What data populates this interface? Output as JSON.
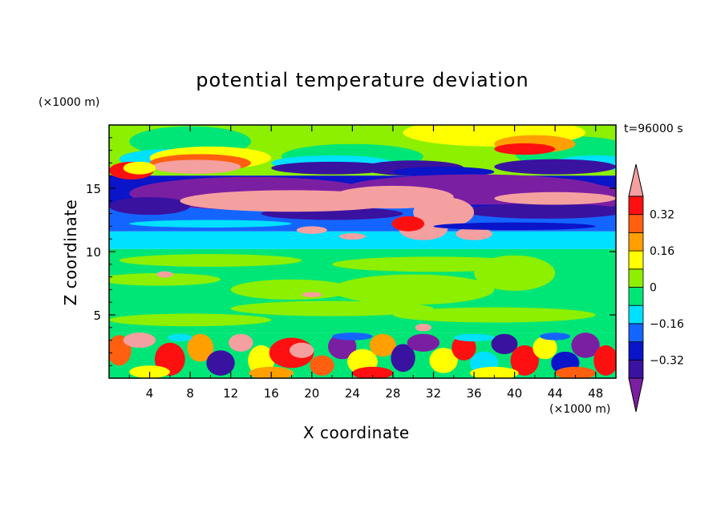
{
  "chart_data": {
    "type": "heatmap",
    "title": "potential temperature deviation",
    "xlabel": "X coordinate",
    "ylabel": "Z coordinate",
    "x_unit": "(×1000 m)",
    "y_unit": "(×1000 m)",
    "time_label": "t=96000 s",
    "xlim": [
      0,
      50
    ],
    "ylim": [
      0,
      20
    ],
    "x_ticks": [
      4,
      8,
      12,
      16,
      20,
      24,
      28,
      32,
      36,
      40,
      44,
      48
    ],
    "y_ticks": [
      5,
      10,
      15
    ],
    "colorbar": {
      "levels": [
        -0.48,
        -0.4,
        -0.32,
        -0.24,
        -0.16,
        -0.08,
        0,
        0.08,
        0.16,
        0.24,
        0.32,
        0.4
      ],
      "tick_values": [
        0.32,
        0.16,
        0,
        -0.16,
        -0.32
      ],
      "tick_labels": [
        "0.32",
        "0.16",
        "0",
        "−0.16",
        "−0.32"
      ],
      "colors": [
        "#7b1fa2",
        "#3a12a0",
        "#0a14c8",
        "#1465ff",
        "#00e0ff",
        "#00e676",
        "#8cf000",
        "#ffff00",
        "#ffa000",
        "#ff6010",
        "#ff1010",
        "#f5a0a0"
      ]
    },
    "layers": [
      {
        "z_range": [
          0,
          3.6
        ],
        "description": "turbulent mixed layer",
        "dominant": [
          "green",
          "cyan",
          "purple",
          "red",
          "yellow"
        ]
      },
      {
        "z_range": [
          3.6,
          10.2
        ],
        "description": "near-zero field",
        "dominant": [
          "#00e676",
          "#8cf000"
        ]
      },
      {
        "z_range": [
          10.2,
          11.6
        ],
        "description": "cool band",
        "dominant": [
          "#00e0ff"
        ]
      },
      {
        "z_range": [
          11.6,
          13.5
        ],
        "description": "cold band",
        "dominant": [
          "#1465ff",
          "#0a14c8"
        ]
      },
      {
        "z_range": [
          13.5,
          16.0
        ],
        "description": "warm pink streak over purple",
        "dominant": [
          "#f5a0a0",
          "#7b1fa2"
        ]
      },
      {
        "z_range": [
          16.0,
          20.0
        ],
        "description": "upper layer",
        "dominant": [
          "#00e676",
          "#8cf000",
          "#ffff00"
        ]
      }
    ]
  }
}
